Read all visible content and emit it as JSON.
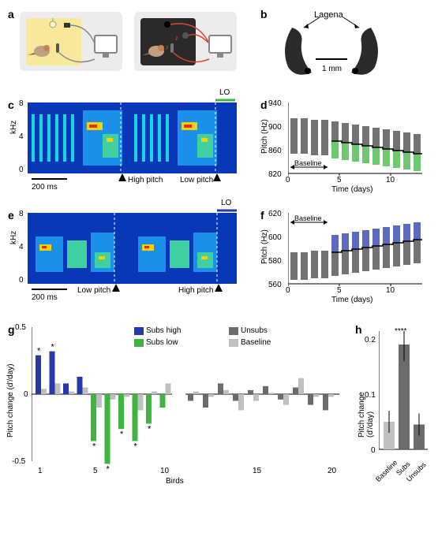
{
  "panel_labels": {
    "a": "a",
    "b": "b",
    "c": "c",
    "d": "d",
    "e": "e",
    "f": "f",
    "g": "g",
    "h": "h"
  },
  "panel_b": {
    "title": "Lagena",
    "scale": "1 mm"
  },
  "panel_c": {
    "lo": "LO",
    "ylabel": "kHz",
    "yticks": [
      "0",
      "4",
      "8"
    ],
    "scale": "200 ms",
    "high": "High pitch",
    "low": "Low pitch"
  },
  "panel_d": {
    "ylabel": "Pitch (Hz)",
    "xlabel": "Time (days)",
    "yticks": [
      "820",
      "860",
      "900",
      "940"
    ],
    "xticks": [
      "0",
      "5",
      "10"
    ],
    "baseline": "Baseline"
  },
  "panel_e": {
    "lo": "LO",
    "ylabel": "kHz",
    "yticks": [
      "0",
      "4",
      "8"
    ],
    "scale": "200 ms",
    "low": "Low pitch",
    "high": "High pitch"
  },
  "panel_f": {
    "ylabel": "Pitch (Hz)",
    "xlabel": "Time (days)",
    "yticks": [
      "560",
      "580",
      "600",
      "620"
    ],
    "xticks": [
      "0",
      "5",
      "10"
    ],
    "baseline": "Baseline"
  },
  "panel_g": {
    "ylabel": "Pitch change (d'/day)",
    "xlabel": "Birds",
    "yticks": [
      "-0.5",
      "0",
      "0.5"
    ],
    "xticks": [
      "1",
      "5",
      "10",
      "15",
      "20"
    ],
    "legend": {
      "subs_high": "Subs high",
      "subs_low": "Subs low",
      "unsubs": "Unsubs",
      "baseline": "Baseline"
    },
    "bars_left": [
      {
        "x": 1,
        "val": 0.29,
        "color": "#2838a8",
        "star": true,
        "base": 0.04
      },
      {
        "x": 2,
        "val": 0.32,
        "color": "#2838a8",
        "star": true,
        "base": 0.08
      },
      {
        "x": 3,
        "val": 0.08,
        "color": "#2838a8",
        "star": false,
        "base": 0.02
      },
      {
        "x": 4,
        "val": 0.13,
        "color": "#2838a8",
        "star": false,
        "base": 0.05
      },
      {
        "x": 5,
        "val": -0.35,
        "color": "#3fb540",
        "star": true,
        "base": -0.1
      },
      {
        "x": 6,
        "val": -0.52,
        "color": "#3fb540",
        "star": true,
        "base": -0.04
      },
      {
        "x": 7,
        "val": -0.26,
        "color": "#3fb540",
        "star": true,
        "base": -0.02
      },
      {
        "x": 8,
        "val": -0.35,
        "color": "#3fb540",
        "star": true,
        "base": -0.12
      },
      {
        "x": 9,
        "val": -0.22,
        "color": "#3fb540",
        "star": true,
        "base": 0.02
      },
      {
        "x": 10,
        "val": -0.1,
        "color": "#3fb540",
        "star": false,
        "base": 0.08
      }
    ],
    "bars_right": [
      {
        "x": 11,
        "val": -0.05,
        "base": 0.02
      },
      {
        "x": 12,
        "val": -0.1,
        "base": -0.02
      },
      {
        "x": 13,
        "val": 0.08,
        "base": 0.03
      },
      {
        "x": 14,
        "val": -0.05,
        "base": -0.12
      },
      {
        "x": 15,
        "val": 0.03,
        "base": -0.05
      },
      {
        "x": 16,
        "val": 0.06,
        "base": 0.01
      },
      {
        "x": 17,
        "val": -0.04,
        "base": -0.08
      },
      {
        "x": 18,
        "val": 0.05,
        "base": 0.12
      },
      {
        "x": 19,
        "val": -0.08,
        "base": -0.02
      },
      {
        "x": 20,
        "val": -0.12,
        "base": -0.02
      }
    ],
    "colors": {
      "subs_high": "#2838a8",
      "subs_low": "#3fb540",
      "unsubs": "#6b6b6b",
      "baseline": "#bfbfbf"
    }
  },
  "panel_h": {
    "ylabel": "Pitch change (d'/day)",
    "yticks": [
      "0",
      "0.1",
      "0.2"
    ],
    "xticks": [
      "Baseline",
      "Subs",
      "Unsubs"
    ],
    "stars": "****",
    "bars": [
      {
        "label": "Baseline",
        "val": 0.05,
        "err": 0.02,
        "color": "#bfbfbf"
      },
      {
        "label": "Subs",
        "val": 0.19,
        "err": 0.03,
        "color": "#6b6b6b"
      },
      {
        "label": "Unsubs",
        "val": 0.045,
        "err": 0.02,
        "color": "#6b6b6b"
      }
    ]
  },
  "colors": {
    "green": "#3fb540",
    "blue": "#2838a8",
    "dark_gray": "#6b6b6b",
    "light_gray": "#bfbfbf",
    "black": "#000000"
  }
}
